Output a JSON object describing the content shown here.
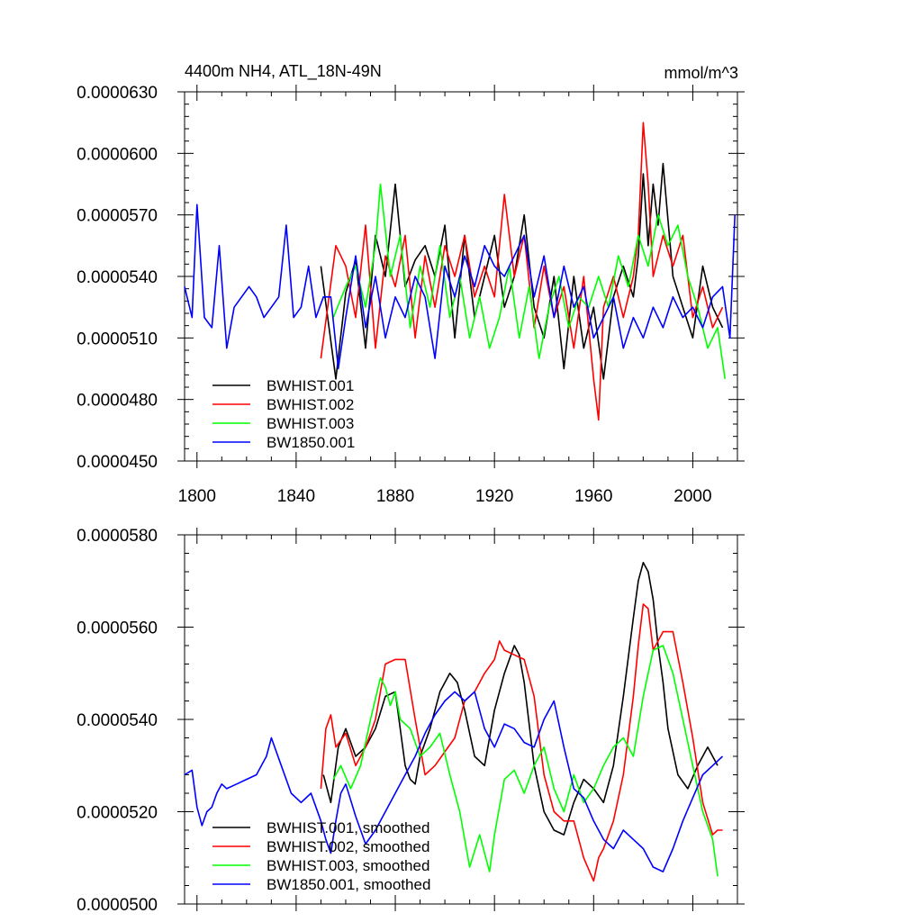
{
  "chart_data": [
    {
      "type": "line",
      "title": "4400m NH4, ATL_18N-49N",
      "units": "mmol/m^3",
      "xlim": [
        1795,
        2018
      ],
      "ylim": [
        4.5e-05,
        6.3e-05
      ],
      "xticks": [
        1800,
        1840,
        1880,
        1920,
        1960,
        2000
      ],
      "xtick_labels": [
        "1800",
        "1840",
        "1880",
        "1920",
        "1960",
        "2000"
      ],
      "yticks": [
        4.5e-05,
        4.8e-05,
        5.1e-05,
        5.4e-05,
        5.7e-05,
        6e-05,
        6.3e-05
      ],
      "ytick_labels": [
        "0.0000450",
        "0.0000480",
        "0.0000510",
        "0.0000540",
        "0.0000570",
        "0.0000600",
        "0.0000630"
      ],
      "legend_position": "bottom-left",
      "series": [
        {
          "name": "BWHIST.001",
          "color": "#000000",
          "x": [
            1850,
            1856,
            1860,
            1864,
            1868,
            1872,
            1876,
            1880,
            1884,
            1888,
            1892,
            1896,
            1900,
            1904,
            1908,
            1912,
            1916,
            1920,
            1924,
            1928,
            1932,
            1936,
            1940,
            1944,
            1948,
            1952,
            1956,
            1960,
            1964,
            1968,
            1972,
            1976,
            1978,
            1980,
            1982,
            1984,
            1986,
            1988,
            1992,
            1996,
            2000,
            2004,
            2008,
            2012
          ],
          "values": [
            5.45e-05,
            4.9e-05,
            5.32e-05,
            5.48e-05,
            5.05e-05,
            5.6e-05,
            5.4e-05,
            5.85e-05,
            5.35e-05,
            5.48e-05,
            5.55e-05,
            5.4e-05,
            5.65e-05,
            5.1e-05,
            5.6e-05,
            5.2e-05,
            5.4e-05,
            5.6e-05,
            5.25e-05,
            5.4e-05,
            5.7e-05,
            5.25e-05,
            5.1e-05,
            5.4e-05,
            4.95e-05,
            5.4e-05,
            5.05e-05,
            5.25e-05,
            4.9e-05,
            5.3e-05,
            5.45e-05,
            5.3e-05,
            5.5e-05,
            5.9e-05,
            5.55e-05,
            5.85e-05,
            5.65e-05,
            5.95e-05,
            5.4e-05,
            5.25e-05,
            5.1e-05,
            5.45e-05,
            5.25e-05,
            5.15e-05
          ]
        },
        {
          "name": "BWHIST.002",
          "color": "#ff0000",
          "x": [
            1850,
            1856,
            1860,
            1864,
            1868,
            1872,
            1876,
            1880,
            1884,
            1888,
            1892,
            1896,
            1900,
            1904,
            1908,
            1912,
            1916,
            1920,
            1924,
            1928,
            1932,
            1936,
            1940,
            1944,
            1948,
            1952,
            1956,
            1960,
            1962,
            1964,
            1968,
            1972,
            1976,
            1978,
            1980,
            1982,
            1984,
            1988,
            1992,
            1996,
            2000,
            2004,
            2008,
            2012
          ],
          "values": [
            5e-05,
            5.55e-05,
            5.45e-05,
            5.2e-05,
            5.65e-05,
            5.05e-05,
            5.5e-05,
            5.35e-05,
            5.6e-05,
            5.1e-05,
            5.5e-05,
            5.25e-05,
            5.55e-05,
            5.4e-05,
            5.6e-05,
            5.3e-05,
            5.45e-05,
            5.3e-05,
            5.8e-05,
            5.4e-05,
            5.6e-05,
            5.15e-05,
            5.45e-05,
            5.2e-05,
            5.35e-05,
            5.05e-05,
            5.4e-05,
            4.9e-05,
            4.7e-05,
            5.25e-05,
            5.4e-05,
            5.2e-05,
            5.4e-05,
            5.6e-05,
            6.15e-05,
            5.85e-05,
            5.4e-05,
            5.6e-05,
            5.45e-05,
            5.6e-05,
            5.2e-05,
            5.35e-05,
            5.15e-05,
            5.25e-05
          ]
        },
        {
          "name": "BWHIST.003",
          "color": "#00ff00",
          "x": [
            1855,
            1860,
            1864,
            1868,
            1872,
            1874,
            1878,
            1882,
            1886,
            1890,
            1894,
            1898,
            1902,
            1906,
            1910,
            1914,
            1918,
            1922,
            1926,
            1930,
            1934,
            1938,
            1942,
            1946,
            1950,
            1954,
            1958,
            1962,
            1966,
            1970,
            1974,
            1978,
            1982,
            1986,
            1990,
            1994,
            1998,
            2002,
            2006,
            2010,
            2013
          ],
          "values": [
            5.2e-05,
            5.35e-05,
            5.45e-05,
            5.25e-05,
            5.55e-05,
            5.85e-05,
            5.4e-05,
            5.6e-05,
            5.15e-05,
            5.45e-05,
            5.25e-05,
            5.55e-05,
            5.2e-05,
            5.4e-05,
            5.1e-05,
            5.3e-05,
            5.05e-05,
            5.2e-05,
            5.45e-05,
            5.1e-05,
            5.35e-05,
            5e-05,
            5.25e-05,
            5.4e-05,
            5.15e-05,
            5.3e-05,
            5.25e-05,
            5.4e-05,
            5.25e-05,
            5.5e-05,
            5.35e-05,
            5.6e-05,
            5.45e-05,
            5.7e-05,
            5.55e-05,
            5.65e-05,
            5.4e-05,
            5.25e-05,
            5.05e-05,
            5.15e-05,
            4.9e-05
          ]
        },
        {
          "name": "BW1850.001",
          "color": "#0000ff",
          "x": [
            1795,
            1798,
            1800,
            1803,
            1806,
            1809,
            1812,
            1815,
            1818,
            1821,
            1824,
            1827,
            1830,
            1833,
            1836,
            1839,
            1842,
            1845,
            1848,
            1851,
            1854,
            1857,
            1860,
            1864,
            1868,
            1872,
            1876,
            1880,
            1884,
            1888,
            1892,
            1896,
            1900,
            1904,
            1908,
            1912,
            1916,
            1920,
            1924,
            1928,
            1932,
            1936,
            1940,
            1944,
            1948,
            1952,
            1956,
            1960,
            1964,
            1968,
            1972,
            1976,
            1980,
            1984,
            1988,
            1992,
            1996,
            2000,
            2004,
            2008,
            2012,
            2015,
            2017
          ],
          "values": [
            5.35e-05,
            5.2e-05,
            5.75e-05,
            5.2e-05,
            5.15e-05,
            5.55e-05,
            5.05e-05,
            5.25e-05,
            5.3e-05,
            5.35e-05,
            5.3e-05,
            5.2e-05,
            5.25e-05,
            5.3e-05,
            5.65e-05,
            5.2e-05,
            5.25e-05,
            5.45e-05,
            5.2e-05,
            5.3e-05,
            5.3e-05,
            4.95e-05,
            5.2e-05,
            5.5e-05,
            5.15e-05,
            5.4e-05,
            5.1e-05,
            5.3e-05,
            5.2e-05,
            5.4e-05,
            5.3e-05,
            5e-05,
            5.45e-05,
            5.3e-05,
            5.5e-05,
            5.35e-05,
            5.55e-05,
            5.45e-05,
            5.4e-05,
            5.5e-05,
            5.6e-05,
            5.3e-05,
            5.5e-05,
            5.2e-05,
            5.45e-05,
            5.25e-05,
            5.35e-05,
            5.1e-05,
            5.2e-05,
            5.3e-05,
            5.05e-05,
            5.2e-05,
            5.1e-05,
            5.25e-05,
            5.15e-05,
            5.3e-05,
            5.2e-05,
            5.25e-05,
            5.15e-05,
            5.3e-05,
            5.35e-05,
            5.1e-05,
            5.7e-05
          ]
        }
      ]
    },
    {
      "type": "line",
      "xlim": [
        1795,
        2018
      ],
      "ylim": [
        5e-05,
        5.8e-05
      ],
      "xticks": [
        1800,
        1840,
        1880,
        1920,
        1960,
        2000
      ],
      "yticks": [
        5e-05,
        5.2e-05,
        5.4e-05,
        5.6e-05,
        5.8e-05
      ],
      "ytick_labels": [
        "0.0000500",
        "0.0000520",
        "0.0000540",
        "0.0000560",
        "0.0000580"
      ],
      "legend_position": "bottom-left",
      "series": [
        {
          "name": "BWHIST.001, smoothed",
          "color": "#000000",
          "x": [
            1851,
            1854,
            1857,
            1860,
            1864,
            1868,
            1872,
            1876,
            1880,
            1882,
            1884,
            1886,
            1888,
            1890,
            1894,
            1898,
            1902,
            1905,
            1908,
            1912,
            1916,
            1920,
            1924,
            1928,
            1930,
            1932,
            1936,
            1940,
            1944,
            1948,
            1952,
            1956,
            1960,
            1964,
            1968,
            1972,
            1976,
            1978,
            1980,
            1982,
            1984,
            1986,
            1988,
            1990,
            1994,
            1998,
            2002,
            2006,
            2010
          ],
          "values": [
            5.28e-05,
            5.22e-05,
            5.34e-05,
            5.38e-05,
            5.32e-05,
            5.34e-05,
            5.38e-05,
            5.45e-05,
            5.46e-05,
            5.38e-05,
            5.3e-05,
            5.27e-05,
            5.26e-05,
            5.32e-05,
            5.38e-05,
            5.46e-05,
            5.5e-05,
            5.48e-05,
            5.42e-05,
            5.32e-05,
            5.3e-05,
            5.42e-05,
            5.5e-05,
            5.56e-05,
            5.54e-05,
            5.48e-05,
            5.3e-05,
            5.2e-05,
            5.16e-05,
            5.15e-05,
            5.22e-05,
            5.27e-05,
            5.25e-05,
            5.22e-05,
            5.3e-05,
            5.45e-05,
            5.62e-05,
            5.7e-05,
            5.74e-05,
            5.72e-05,
            5.66e-05,
            5.56e-05,
            5.48e-05,
            5.38e-05,
            5.28e-05,
            5.25e-05,
            5.3e-05,
            5.34e-05,
            5.3e-05
          ]
        },
        {
          "name": "BWHIST.002, smoothed",
          "color": "#ff0000",
          "x": [
            1850,
            1852,
            1854,
            1856,
            1860,
            1864,
            1868,
            1872,
            1876,
            1880,
            1884,
            1888,
            1892,
            1896,
            1900,
            1904,
            1908,
            1912,
            1916,
            1920,
            1922,
            1924,
            1928,
            1932,
            1936,
            1940,
            1944,
            1948,
            1952,
            1956,
            1960,
            1962,
            1964,
            1968,
            1972,
            1976,
            1978,
            1980,
            1982,
            1984,
            1988,
            1992,
            1996,
            2000,
            2004,
            2008,
            2010,
            2012
          ],
          "values": [
            5.25e-05,
            5.38e-05,
            5.41e-05,
            5.34e-05,
            5.37e-05,
            5.3e-05,
            5.34e-05,
            5.4e-05,
            5.52e-05,
            5.53e-05,
            5.53e-05,
            5.4e-05,
            5.28e-05,
            5.3e-05,
            5.33e-05,
            5.36e-05,
            5.44e-05,
            5.46e-05,
            5.5e-05,
            5.53e-05,
            5.57e-05,
            5.55e-05,
            5.54e-05,
            5.53e-05,
            5.45e-05,
            5.28e-05,
            5.2e-05,
            5.18e-05,
            5.18e-05,
            5.1e-05,
            5.05e-05,
            5.1e-05,
            5.12e-05,
            5.18e-05,
            5.28e-05,
            5.45e-05,
            5.56e-05,
            5.65e-05,
            5.64e-05,
            5.55e-05,
            5.59e-05,
            5.59e-05,
            5.48e-05,
            5.36e-05,
            5.22e-05,
            5.15e-05,
            5.16e-05,
            5.16e-05
          ]
        },
        {
          "name": "BWHIST.003, smoothed",
          "color": "#00ff00",
          "x": [
            1855,
            1858,
            1862,
            1866,
            1870,
            1874,
            1876,
            1878,
            1880,
            1882,
            1886,
            1890,
            1894,
            1898,
            1902,
            1906,
            1910,
            1914,
            1918,
            1920,
            1924,
            1928,
            1932,
            1936,
            1940,
            1944,
            1948,
            1952,
            1956,
            1960,
            1964,
            1968,
            1972,
            1976,
            1980,
            1984,
            1988,
            1992,
            1996,
            2000,
            2004,
            2008,
            2010
          ],
          "values": [
            5.27e-05,
            5.3e-05,
            5.25e-05,
            5.3e-05,
            5.4e-05,
            5.49e-05,
            5.47e-05,
            5.43e-05,
            5.46e-05,
            5.4e-05,
            5.38e-05,
            5.32e-05,
            5.34e-05,
            5.37e-05,
            5.28e-05,
            5.2e-05,
            5.08e-05,
            5.15e-05,
            5.07e-05,
            5.15e-05,
            5.27e-05,
            5.29e-05,
            5.24e-05,
            5.3e-05,
            5.34e-05,
            5.25e-05,
            5.2e-05,
            5.28e-05,
            5.22e-05,
            5.25e-05,
            5.3e-05,
            5.34e-05,
            5.36e-05,
            5.32e-05,
            5.45e-05,
            5.55e-05,
            5.56e-05,
            5.5e-05,
            5.4e-05,
            5.3e-05,
            5.2e-05,
            5.14e-05,
            5.06e-05
          ]
        },
        {
          "name": "BW1850.001, smoothed",
          "color": "#0000ff",
          "x": [
            1795,
            1798,
            1800,
            1802,
            1804,
            1806,
            1808,
            1810,
            1812,
            1816,
            1820,
            1824,
            1828,
            1830,
            1834,
            1838,
            1842,
            1846,
            1850,
            1852,
            1854,
            1856,
            1858,
            1860,
            1864,
            1868,
            1872,
            1876,
            1880,
            1884,
            1888,
            1892,
            1896,
            1900,
            1904,
            1908,
            1912,
            1916,
            1920,
            1924,
            1928,
            1932,
            1936,
            1940,
            1944,
            1948,
            1952,
            1956,
            1960,
            1964,
            1968,
            1972,
            1976,
            1980,
            1984,
            1988,
            1992,
            1996,
            2000,
            2004,
            2008,
            2012
          ],
          "values": [
            5.28e-05,
            5.29e-05,
            5.21e-05,
            5.17e-05,
            5.2e-05,
            5.21e-05,
            5.24e-05,
            5.26e-05,
            5.25e-05,
            5.26e-05,
            5.27e-05,
            5.28e-05,
            5.32e-05,
            5.36e-05,
            5.3e-05,
            5.24e-05,
            5.22e-05,
            5.24e-05,
            5.18e-05,
            5.14e-05,
            5.11e-05,
            5.18e-05,
            5.24e-05,
            5.26e-05,
            5.19e-05,
            5.13e-05,
            5.16e-05,
            5.2e-05,
            5.24e-05,
            5.28e-05,
            5.32e-05,
            5.37e-05,
            5.41e-05,
            5.44e-05,
            5.46e-05,
            5.44e-05,
            5.46e-05,
            5.38e-05,
            5.34e-05,
            5.39e-05,
            5.38e-05,
            5.35e-05,
            5.34e-05,
            5.4e-05,
            5.44e-05,
            5.34e-05,
            5.25e-05,
            5.23e-05,
            5.18e-05,
            5.14e-05,
            5.12e-05,
            5.16e-05,
            5.14e-05,
            5.12e-05,
            5.08e-05,
            5.07e-05,
            5.12e-05,
            5.18e-05,
            5.23e-05,
            5.28e-05,
            5.3e-05,
            5.32e-05
          ]
        }
      ]
    }
  ]
}
